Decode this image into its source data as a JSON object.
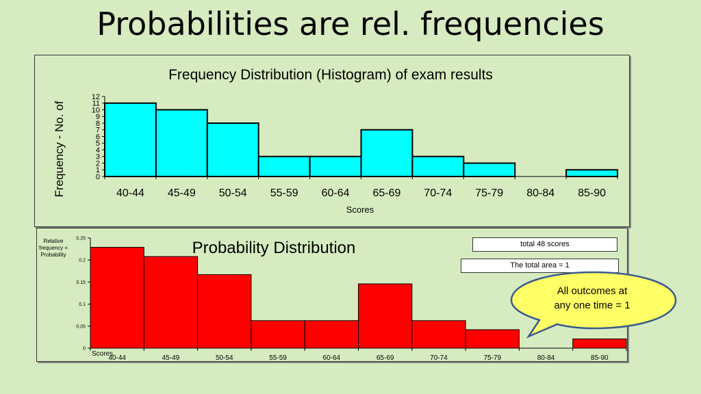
{
  "slide": {
    "title": "Probabilities are rel. frequencies"
  },
  "charts": {
    "frequency": {
      "title": "Frequency Distribution (Histogram) of exam results",
      "ylabel": "Frequency - No. of",
      "xlabel": "Scores"
    },
    "probability": {
      "title": "Probability Distribution",
      "ylabel_lines": [
        "Relative",
        "frequency =",
        "Probability"
      ],
      "xlabel": "Scores"
    }
  },
  "notes": {
    "total": "total 48 scores",
    "area": "The total area = 1",
    "callout_lines": [
      "All outcomes at",
      "any one time = 1"
    ]
  },
  "colors": {
    "background": "#d6ecc0",
    "freq_bars": "#00ffff",
    "prob_bars": "#ff0000",
    "callout_fill": "#ffff66",
    "callout_stroke": "#3a5a8c"
  },
  "chart_data": [
    {
      "type": "bar",
      "title": "Frequency Distribution (Histogram) of exam results",
      "xlabel": "Scores",
      "ylabel": "Frequency - No. of",
      "categories": [
        "40-44",
        "45-49",
        "50-54",
        "55-59",
        "60-64",
        "65-69",
        "70-74",
        "75-79",
        "80-84",
        "85-90"
      ],
      "values": [
        11,
        10,
        8,
        3,
        3,
        7,
        3,
        2,
        0,
        1
      ],
      "ylim": [
        0,
        12
      ],
      "yticks": [
        0,
        1,
        2,
        3,
        4,
        5,
        6,
        7,
        8,
        9,
        10,
        11,
        12
      ],
      "grid": false
    },
    {
      "type": "bar",
      "title": "Probability Distribution",
      "xlabel": "Scores",
      "ylabel": "Relative frequency = Probability",
      "categories": [
        "40-44",
        "45-49",
        "50-54",
        "55-59",
        "60-64",
        "65-69",
        "70-74",
        "75-79",
        "80-84",
        "85-90"
      ],
      "values": [
        0.229,
        0.208,
        0.167,
        0.0625,
        0.0625,
        0.146,
        0.0625,
        0.042,
        0,
        0.021
      ],
      "ylim": [
        0,
        0.25
      ],
      "yticks": [
        "0",
        "0.05",
        "0.1",
        "0.15",
        "0.2",
        "0.25"
      ],
      "grid": false
    }
  ]
}
